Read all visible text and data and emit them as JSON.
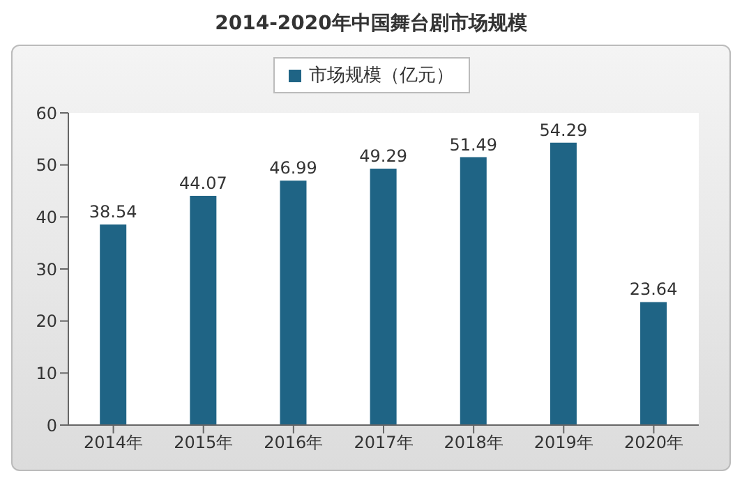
{
  "chart_data": {
    "type": "bar",
    "title": "2014-2020年中国舞台剧市场规模",
    "categories": [
      "2014年",
      "2015年",
      "2016年",
      "2017年",
      "2018年",
      "2019年",
      "2020年"
    ],
    "series": [
      {
        "name": "市场规模（亿元）",
        "color": "#1f6485",
        "values": [
          38.54,
          44.07,
          46.99,
          49.29,
          51.49,
          54.29,
          23.64
        ]
      }
    ],
    "ylim": [
      0,
      60
    ],
    "yticks": [
      0,
      10,
      20,
      30,
      40,
      50,
      60
    ],
    "data_labels": true,
    "legend": "top",
    "grid": false
  }
}
